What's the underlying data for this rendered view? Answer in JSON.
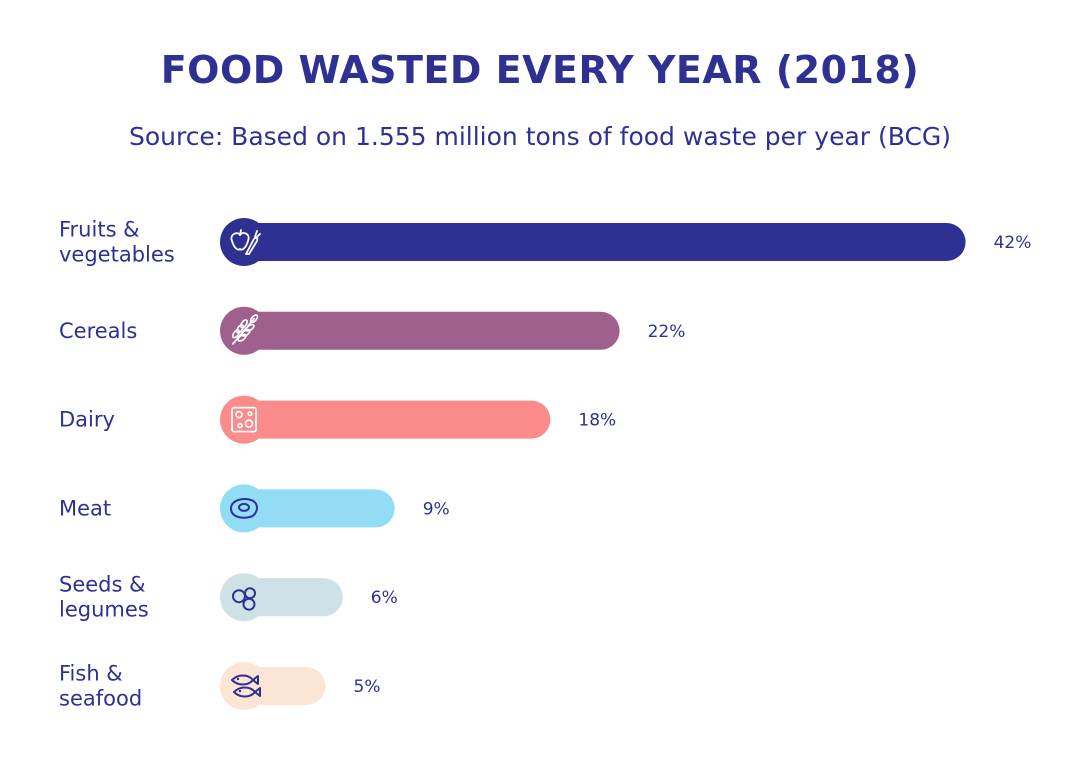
{
  "title": "FOOD WASTED EVERY YEAR (2018)",
  "subtitle": "Source: Based on 1.555 million tons of food waste per year (BCG)",
  "chart_data": {
    "type": "bar",
    "orientation": "horizontal",
    "categories": [
      [
        "Fruits &",
        "vegetables"
      ],
      [
        "Cereals"
      ],
      [
        "Dairy"
      ],
      [
        "Meat"
      ],
      [
        "Seeds &",
        "legumes"
      ],
      [
        "Fish &",
        "seafood"
      ]
    ],
    "values": [
      42,
      22,
      18,
      9,
      6,
      5
    ],
    "value_labels": [
      "42%",
      "22%",
      "18%",
      "9%",
      "6%",
      "5%"
    ],
    "icons": [
      "fruits-vegetables-icon",
      "wheat-icon",
      "cheese-icon",
      "steak-icon",
      "legumes-icon",
      "fish-icon"
    ],
    "colors": [
      "#2e3192",
      "#a0608e",
      "#fc8c8c",
      "#92dcf5",
      "#cde1e6",
      "#fde5d6"
    ],
    "label_color": "#2e3192",
    "grid": false,
    "legend": "none"
  }
}
